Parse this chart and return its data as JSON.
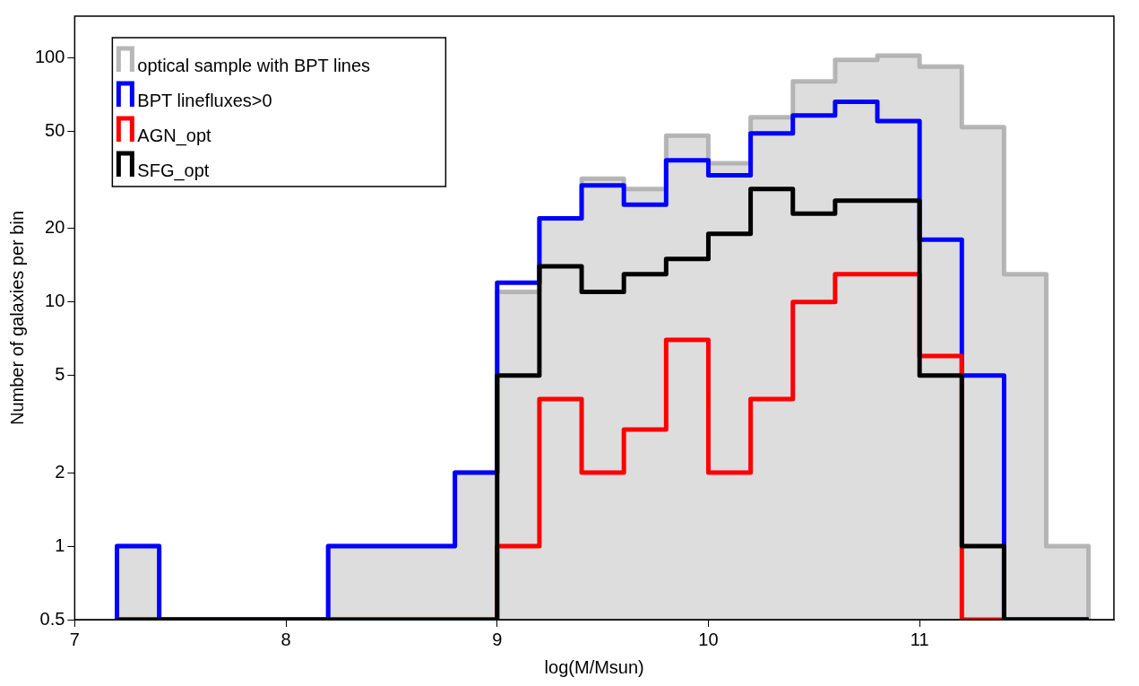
{
  "chart_data": {
    "type": "histogram",
    "xlabel": "log(M/Msun)",
    "ylabel": "Number of galaxies per bin",
    "bins": [
      7.2,
      7.4,
      7.6,
      7.8,
      8.0,
      8.2,
      8.4,
      8.6,
      8.8,
      9.0,
      9.2,
      9.4,
      9.6,
      9.8,
      10.0,
      10.2,
      10.4,
      10.6,
      10.8,
      11.0,
      11.2,
      11.4,
      11.6,
      11.8
    ],
    "series": [
      {
        "name": "optical sample with BPT lines",
        "color": "#aaaaaa",
        "values": [
          1,
          null,
          null,
          null,
          null,
          1,
          1,
          1,
          2,
          11,
          22,
          32,
          29,
          48,
          37,
          57,
          80,
          98,
          102,
          92,
          52,
          13,
          1
        ]
      },
      {
        "name": "BPT linefluxes>0",
        "color": "#0000ff",
        "values": [
          1,
          null,
          null,
          null,
          null,
          1,
          1,
          1,
          2,
          12,
          22,
          30,
          25,
          38,
          33,
          49,
          58,
          66,
          55,
          18,
          5,
          null,
          null
        ]
      },
      {
        "name": "AGN_opt",
        "color": "#ff0000",
        "values": [
          null,
          null,
          null,
          null,
          null,
          null,
          null,
          null,
          null,
          1,
          4,
          2,
          3,
          7,
          2,
          4,
          10,
          13,
          13,
          6,
          null,
          null,
          null
        ]
      },
      {
        "name": "SFG_opt",
        "color": "#000000",
        "values": [
          null,
          null,
          null,
          null,
          null,
          null,
          null,
          null,
          null,
          5,
          14,
          11,
          13,
          15,
          19,
          29,
          23,
          26,
          26,
          5,
          1,
          null,
          null
        ]
      }
    ],
    "xlim": [
      7,
      11.92
    ],
    "xticks": [
      7,
      8,
      9,
      10,
      11
    ],
    "ylim": [
      0.5,
      148
    ],
    "yticks": [
      0.5,
      1,
      2,
      5,
      10,
      20,
      50,
      100
    ],
    "log": "y",
    "grid": false,
    "legend": "top left"
  }
}
